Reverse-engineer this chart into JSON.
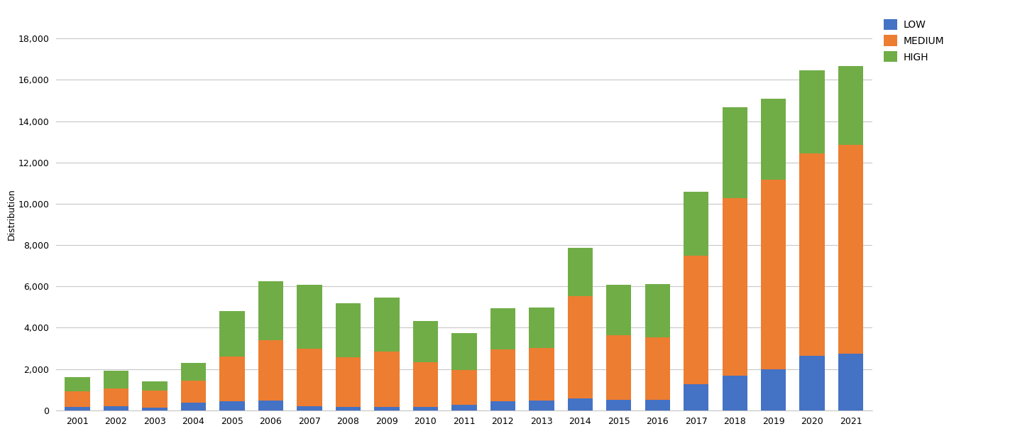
{
  "years": [
    2001,
    2002,
    2003,
    2004,
    2005,
    2006,
    2007,
    2008,
    2009,
    2010,
    2011,
    2012,
    2013,
    2014,
    2015,
    2016,
    2017,
    2018,
    2019,
    2020,
    2021
  ],
  "low": [
    170,
    190,
    120,
    380,
    450,
    460,
    210,
    160,
    180,
    170,
    270,
    440,
    460,
    560,
    520,
    520,
    1280,
    1680,
    1980,
    2650,
    2750
  ],
  "medium": [
    750,
    870,
    820,
    1050,
    2150,
    2950,
    2780,
    2420,
    2680,
    2150,
    1680,
    2500,
    2550,
    4950,
    3100,
    3000,
    6200,
    8600,
    9200,
    9800,
    10100
  ],
  "high": [
    680,
    870,
    460,
    870,
    2200,
    2850,
    3100,
    2600,
    2600,
    2000,
    1800,
    2000,
    1950,
    2350,
    2450,
    2600,
    3100,
    4400,
    3900,
    4000,
    3800
  ],
  "low_color": "#4472c4",
  "medium_color": "#ed7d31",
  "high_color": "#70ad47",
  "ylabel": "Distribution",
  "ylim": [
    0,
    19000
  ],
  "yticks": [
    0,
    2000,
    4000,
    6000,
    8000,
    10000,
    12000,
    14000,
    16000,
    18000
  ],
  "bg_color": "#ffffff",
  "grid_color": "#c8c8c8",
  "legend_labels": [
    "LOW",
    "MEDIUM",
    "HIGH"
  ],
  "bar_width": 0.65
}
